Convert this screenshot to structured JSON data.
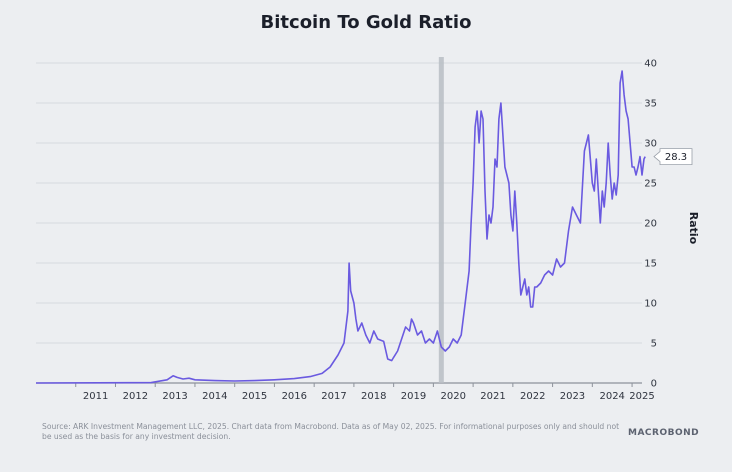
{
  "header": {
    "title": "Bitcoin To Gold Ratio"
  },
  "chart_data": {
    "type": "line",
    "title": "Bitcoin To Gold Ratio",
    "xlabel": "",
    "ylabel": "Ratio",
    "ylim": [
      0,
      40
    ],
    "xlim": [
      2010.0,
      2025.25
    ],
    "yticks": [
      0,
      5,
      10,
      15,
      20,
      25,
      30,
      35,
      40
    ],
    "xtick_labels": [
      "2011",
      "2012",
      "2013",
      "2014",
      "2015",
      "2016",
      "2017",
      "2018",
      "2019",
      "2020",
      "2021",
      "2022",
      "2023",
      "2024",
      "2025"
    ],
    "highlight_date": 2020.2,
    "last_value_label": "28.3",
    "series": [
      {
        "name": "Bitcoin To Gold Ratio",
        "color": "#6a5ae0",
        "x": [
          2010.0,
          2012.9,
          2013.3,
          2013.45,
          2013.55,
          2013.7,
          2013.85,
          2014.0,
          2014.5,
          2015.0,
          2015.5,
          2016.0,
          2016.5,
          2016.9,
          2017.2,
          2017.4,
          2017.6,
          2017.75,
          2017.85,
          2017.88,
          2017.92,
          2018.0,
          2018.05,
          2018.1,
          2018.2,
          2018.3,
          2018.4,
          2018.5,
          2018.6,
          2018.75,
          2018.85,
          2018.95,
          2019.0,
          2019.1,
          2019.2,
          2019.3,
          2019.4,
          2019.45,
          2019.5,
          2019.6,
          2019.7,
          2019.8,
          2019.9,
          2020.0,
          2020.1,
          2020.2,
          2020.3,
          2020.4,
          2020.5,
          2020.6,
          2020.7,
          2020.8,
          2020.9,
          2020.95,
          2021.0,
          2021.05,
          2021.1,
          2021.15,
          2021.2,
          2021.25,
          2021.3,
          2021.35,
          2021.4,
          2021.45,
          2021.5,
          2021.55,
          2021.6,
          2021.65,
          2021.7,
          2021.75,
          2021.8,
          2021.85,
          2021.9,
          2021.95,
          2022.0,
          2022.05,
          2022.1,
          2022.15,
          2022.2,
          2022.3,
          2022.35,
          2022.4,
          2022.45,
          2022.5,
          2022.55,
          2022.6,
          2022.7,
          2022.8,
          2022.9,
          2023.0,
          2023.1,
          2023.2,
          2023.3,
          2023.4,
          2023.5,
          2023.6,
          2023.7,
          2023.8,
          2023.9,
          2024.0,
          2024.05,
          2024.1,
          2024.15,
          2024.2,
          2024.25,
          2024.3,
          2024.35,
          2024.4,
          2024.45,
          2024.5,
          2024.55,
          2024.6,
          2024.65,
          2024.7,
          2024.75,
          2024.8,
          2024.85,
          2024.9,
          2024.95,
          2025.0,
          2025.05,
          2025.1,
          2025.15,
          2025.2,
          2025.25,
          2025.3,
          2025.33
        ],
        "y": [
          0.0,
          0.05,
          0.4,
          0.9,
          0.7,
          0.5,
          0.6,
          0.4,
          0.3,
          0.25,
          0.3,
          0.4,
          0.55,
          0.8,
          1.2,
          2.0,
          3.5,
          5.0,
          9.0,
          15.0,
          11.5,
          10.0,
          8.0,
          6.5,
          7.5,
          6.0,
          5.0,
          6.5,
          5.5,
          5.2,
          3.0,
          2.8,
          3.2,
          4.0,
          5.5,
          7.0,
          6.5,
          8.0,
          7.5,
          6.0,
          6.5,
          5.0,
          5.5,
          5.0,
          6.5,
          4.5,
          4.0,
          4.5,
          5.5,
          5.0,
          6.0,
          10.0,
          14.0,
          20.0,
          25.0,
          32.0,
          34.0,
          30.0,
          34.0,
          33.0,
          24.0,
          18.0,
          21.0,
          20.0,
          22.0,
          28.0,
          27.0,
          33.0,
          35.0,
          31.0,
          27.0,
          26.0,
          25.0,
          21.0,
          19.0,
          24.0,
          20.0,
          15.0,
          11.0,
          13.0,
          11.0,
          12.0,
          9.5,
          9.5,
          12.0,
          12.0,
          12.5,
          13.5,
          14.0,
          13.5,
          15.5,
          14.5,
          15.0,
          19.0,
          22.0,
          21.0,
          20.0,
          29.0,
          31.0,
          25.0,
          24.0,
          28.0,
          24.0,
          20.0,
          24.0,
          22.0,
          25.0,
          30.0,
          26.0,
          23.0,
          25.0,
          23.5,
          26.0,
          37.5,
          39.0,
          36.0,
          34.0,
          33.0,
          30.0,
          27.0,
          27.0,
          26.0,
          27.0,
          28.3,
          26.0,
          28.0,
          28.3
        ]
      }
    ]
  },
  "footer": {
    "source": "Source: ARK Investment Management LLC, 2025. Chart data from Macrobond. Data as of May 02, 2025. For informational purposes only and should not be used as the basis for any investment decision.",
    "logo": "MACROBOND"
  }
}
